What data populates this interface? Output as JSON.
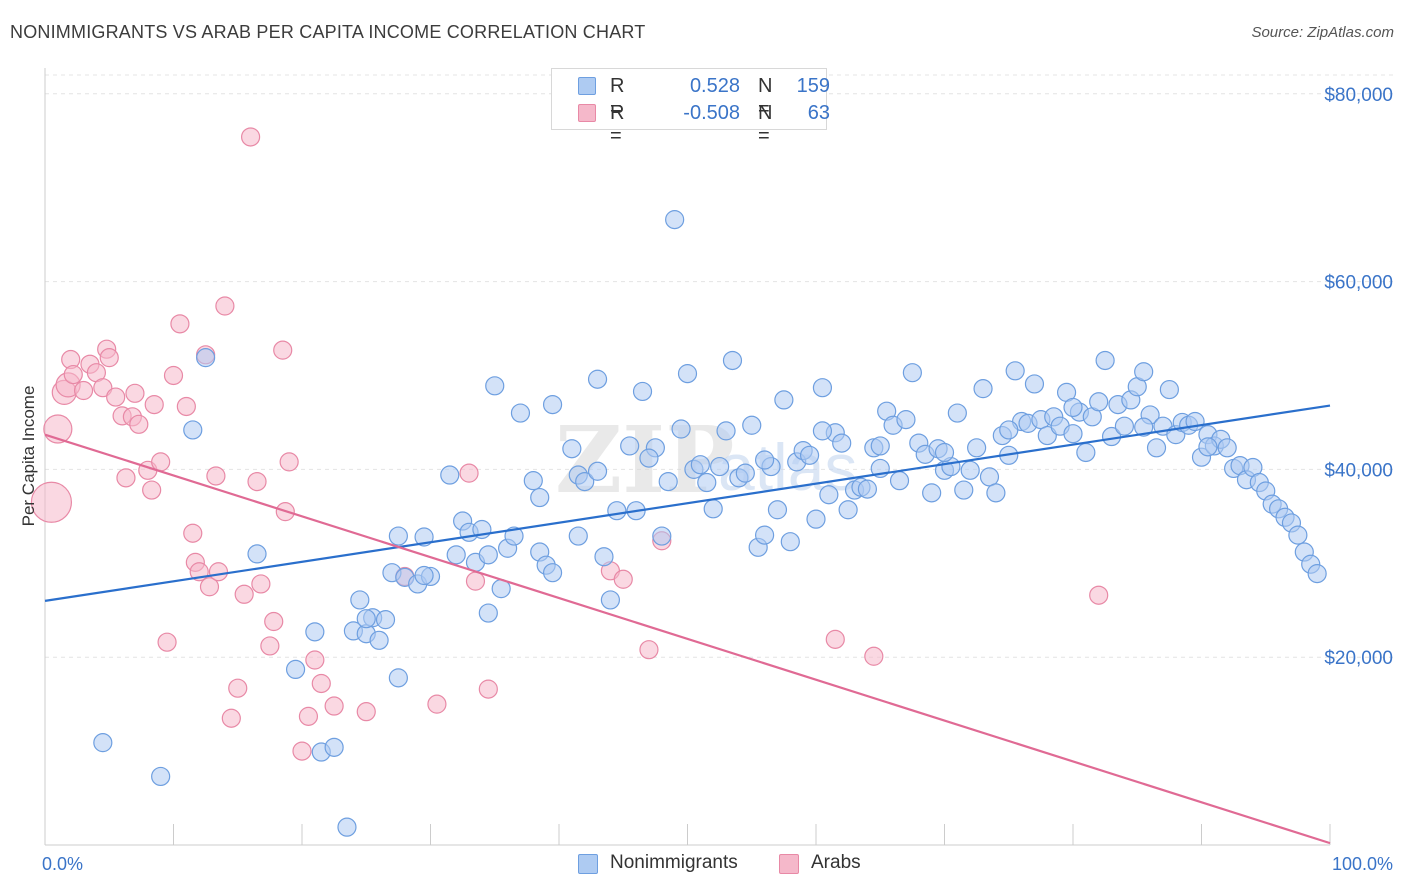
{
  "header": {
    "title": "NONIMMIGRANTS VS ARAB PER CAPITA INCOME CORRELATION CHART",
    "source": "Source: ZipAtlas.com"
  },
  "legend": {
    "rows": [
      {
        "r_label": "R =",
        "r_value": "0.528",
        "n_label": "N =",
        "n_value": "159"
      },
      {
        "r_label": "R =",
        "r_value": "-0.508",
        "n_label": "N =",
        "n_value": "63"
      }
    ]
  },
  "colors": {
    "blue_fill": "#aecbf2",
    "blue_stroke": "#6e9fe0",
    "blue_line": "#2a6fcc",
    "pink_fill": "#f5b8ca",
    "pink_stroke": "#e889a6",
    "pink_line": "#e06a94",
    "tick_text": "#3a74c8",
    "grid": "#e4e4e4"
  },
  "chart_data": {
    "type": "scatter",
    "title": "NONIMMIGRANTS VS ARAB PER CAPITA INCOME CORRELATION CHART",
    "ylabel": "Per Capita Income",
    "xlabel": "",
    "xlim": [
      0,
      100
    ],
    "ylim": [
      0,
      82000
    ],
    "x_tick_labels": [
      "0.0%",
      "100.0%"
    ],
    "y_ticks": [
      {
        "value": 20000,
        "label": "$20,000"
      },
      {
        "value": 40000,
        "label": "$40,000"
      },
      {
        "value": 60000,
        "label": "$60,000"
      },
      {
        "value": 80000,
        "label": "$80,000"
      }
    ],
    "grid": "horizontal dashed",
    "legend_position": "top-center and bottom",
    "watermark": "ZIPatlas",
    "series": [
      {
        "name": "Nonimmigrants",
        "color": "blue",
        "trend": {
          "x": [
            0,
            100
          ],
          "y": [
            26000,
            46800
          ]
        },
        "points": [
          [
            4.5,
            10900
          ],
          [
            9.0,
            7300
          ],
          [
            11.5,
            44200
          ],
          [
            12.5,
            51900
          ],
          [
            16.5,
            31000
          ],
          [
            19.5,
            18700
          ],
          [
            21.0,
            22700
          ],
          [
            21.5,
            9900
          ],
          [
            22.5,
            10400
          ],
          [
            23.5,
            1900
          ],
          [
            24.0,
            22800
          ],
          [
            24.5,
            26100
          ],
          [
            25.0,
            22500
          ],
          [
            25.5,
            24200
          ],
          [
            26.0,
            21800
          ],
          [
            26.5,
            24000
          ],
          [
            27.0,
            29000
          ],
          [
            27.5,
            17800
          ],
          [
            27.5,
            32900
          ],
          [
            28.0,
            28500
          ],
          [
            29.0,
            27800
          ],
          [
            29.5,
            32800
          ],
          [
            30.0,
            28600
          ],
          [
            31.5,
            39400
          ],
          [
            32.0,
            30900
          ],
          [
            32.5,
            34500
          ],
          [
            33.0,
            33300
          ],
          [
            33.5,
            30100
          ],
          [
            34.5,
            24700
          ],
          [
            34.5,
            30900
          ],
          [
            35.0,
            48900
          ],
          [
            35.5,
            27300
          ],
          [
            36.0,
            31600
          ],
          [
            36.5,
            32900
          ],
          [
            37.0,
            46000
          ],
          [
            38.0,
            38800
          ],
          [
            38.5,
            31200
          ],
          [
            39.0,
            29800
          ],
          [
            39.5,
            46900
          ],
          [
            39.5,
            29000
          ],
          [
            41.0,
            42200
          ],
          [
            41.5,
            32900
          ],
          [
            41.5,
            39400
          ],
          [
            42.0,
            38700
          ],
          [
            43.0,
            49600
          ],
          [
            43.5,
            30700
          ],
          [
            44.0,
            26100
          ],
          [
            44.5,
            35600
          ],
          [
            45.5,
            42500
          ],
          [
            46.0,
            35600
          ],
          [
            46.5,
            48300
          ],
          [
            47.5,
            42300
          ],
          [
            48.0,
            32900
          ],
          [
            48.5,
            38700
          ],
          [
            49.0,
            66600
          ],
          [
            49.5,
            44300
          ],
          [
            50.0,
            50200
          ],
          [
            50.5,
            40000
          ],
          [
            51.0,
            40500
          ],
          [
            52.0,
            35800
          ],
          [
            52.5,
            40300
          ],
          [
            53.0,
            44100
          ],
          [
            53.5,
            51600
          ],
          [
            54.0,
            39100
          ],
          [
            54.5,
            39600
          ],
          [
            55.0,
            44700
          ],
          [
            55.5,
            31700
          ],
          [
            56.0,
            33000
          ],
          [
            56.5,
            40300
          ],
          [
            57.0,
            35700
          ],
          [
            57.5,
            47400
          ],
          [
            58.0,
            32300
          ],
          [
            58.5,
            40800
          ],
          [
            59.0,
            42000
          ],
          [
            59.5,
            41500
          ],
          [
            60.0,
            34700
          ],
          [
            60.5,
            48700
          ],
          [
            61.0,
            37300
          ],
          [
            61.5,
            43900
          ],
          [
            62.0,
            42800
          ],
          [
            62.5,
            35700
          ],
          [
            63.0,
            37800
          ],
          [
            63.5,
            38100
          ],
          [
            64.0,
            37900
          ],
          [
            64.5,
            42300
          ],
          [
            65.0,
            42500
          ],
          [
            65.5,
            46200
          ],
          [
            66.0,
            44700
          ],
          [
            66.5,
            38800
          ],
          [
            67.0,
            45300
          ],
          [
            67.5,
            50300
          ],
          [
            68.0,
            42800
          ],
          [
            68.5,
            41600
          ],
          [
            69.0,
            37500
          ],
          [
            69.5,
            42200
          ],
          [
            70.0,
            39900
          ],
          [
            70.5,
            40300
          ],
          [
            71.0,
            46000
          ],
          [
            71.5,
            37800
          ],
          [
            72.0,
            39900
          ],
          [
            72.5,
            42300
          ],
          [
            73.0,
            48600
          ],
          [
            73.5,
            39200
          ],
          [
            74.0,
            37500
          ],
          [
            74.5,
            43600
          ],
          [
            75.0,
            41500
          ],
          [
            75.5,
            50500
          ],
          [
            76.0,
            45100
          ],
          [
            76.5,
            44900
          ],
          [
            77.0,
            49100
          ],
          [
            77.5,
            45300
          ],
          [
            78.0,
            43600
          ],
          [
            78.5,
            45600
          ],
          [
            79.0,
            44600
          ],
          [
            79.5,
            48200
          ],
          [
            80.0,
            43800
          ],
          [
            80.5,
            46100
          ],
          [
            81.0,
            41800
          ],
          [
            81.5,
            45600
          ],
          [
            82.0,
            47200
          ],
          [
            82.5,
            51600
          ],
          [
            83.0,
            43500
          ],
          [
            83.5,
            46900
          ],
          [
            84.0,
            44600
          ],
          [
            84.5,
            47400
          ],
          [
            85.0,
            48800
          ],
          [
            85.5,
            50400
          ],
          [
            86.0,
            45800
          ],
          [
            86.5,
            42300
          ],
          [
            87.0,
            44600
          ],
          [
            87.5,
            48500
          ],
          [
            88.0,
            43700
          ],
          [
            88.5,
            45000
          ],
          [
            89.0,
            44700
          ],
          [
            89.5,
            45100
          ],
          [
            90.0,
            41300
          ],
          [
            90.5,
            43700
          ],
          [
            91.0,
            42500
          ],
          [
            91.5,
            43200
          ],
          [
            92.0,
            42300
          ],
          [
            92.5,
            40100
          ],
          [
            93.0,
            40400
          ],
          [
            93.5,
            38900
          ],
          [
            94.0,
            40200
          ],
          [
            94.5,
            38600
          ],
          [
            95.0,
            37700
          ],
          [
            95.5,
            36300
          ],
          [
            96.0,
            35800
          ],
          [
            96.5,
            34900
          ],
          [
            97.0,
            34300
          ],
          [
            97.5,
            33000
          ],
          [
            98.0,
            31200
          ],
          [
            98.5,
            29900
          ],
          [
            99.0,
            28900
          ],
          [
            90.5,
            42400
          ],
          [
            85.5,
            44500
          ],
          [
            80.0,
            46600
          ],
          [
            75.0,
            44200
          ],
          [
            70.0,
            41800
          ],
          [
            65.0,
            40100
          ],
          [
            60.5,
            44100
          ],
          [
            56.0,
            41000
          ],
          [
            51.5,
            38600
          ],
          [
            47.0,
            41200
          ],
          [
            43.0,
            39800
          ],
          [
            38.5,
            37000
          ],
          [
            34.0,
            33600
          ],
          [
            29.5,
            28700
          ],
          [
            25.0,
            24100
          ]
        ]
      },
      {
        "name": "Arabs",
        "color": "pink",
        "trend": {
          "x": [
            0,
            100
          ],
          "y": [
            43700,
            200
          ]
        },
        "points": [
          [
            0.5,
            36500
          ],
          [
            1.0,
            44300
          ],
          [
            1.5,
            48200
          ],
          [
            1.8,
            49000
          ],
          [
            2.0,
            51700
          ],
          [
            2.2,
            50100
          ],
          [
            3.0,
            48400
          ],
          [
            3.5,
            51200
          ],
          [
            4.0,
            50300
          ],
          [
            4.5,
            48700
          ],
          [
            4.8,
            52800
          ],
          [
            5.0,
            51900
          ],
          [
            5.5,
            47700
          ],
          [
            6.0,
            45700
          ],
          [
            6.3,
            39100
          ],
          [
            6.8,
            45600
          ],
          [
            7.0,
            48100
          ],
          [
            7.3,
            44800
          ],
          [
            8.0,
            39900
          ],
          [
            8.3,
            37800
          ],
          [
            8.5,
            46900
          ],
          [
            9.0,
            40800
          ],
          [
            9.5,
            21600
          ],
          [
            10.0,
            50000
          ],
          [
            10.5,
            55500
          ],
          [
            11.0,
            46700
          ],
          [
            11.5,
            33200
          ],
          [
            11.7,
            30100
          ],
          [
            12.0,
            29100
          ],
          [
            12.5,
            52200
          ],
          [
            12.8,
            27500
          ],
          [
            13.3,
            39300
          ],
          [
            13.5,
            29100
          ],
          [
            14.0,
            57400
          ],
          [
            14.5,
            13500
          ],
          [
            15.0,
            16700
          ],
          [
            15.5,
            26700
          ],
          [
            16.0,
            75400
          ],
          [
            16.5,
            38700
          ],
          [
            16.8,
            27800
          ],
          [
            17.5,
            21200
          ],
          [
            17.8,
            23800
          ],
          [
            18.5,
            52700
          ],
          [
            18.7,
            35500
          ],
          [
            19.0,
            40800
          ],
          [
            20.0,
            10000
          ],
          [
            20.5,
            13700
          ],
          [
            21.0,
            19700
          ],
          [
            21.5,
            17200
          ],
          [
            22.5,
            14800
          ],
          [
            25.0,
            14200
          ],
          [
            28.0,
            28600
          ],
          [
            30.5,
            15000
          ],
          [
            33.0,
            39600
          ],
          [
            33.5,
            28100
          ],
          [
            34.5,
            16600
          ],
          [
            44.0,
            29200
          ],
          [
            45.0,
            28300
          ],
          [
            47.0,
            20800
          ],
          [
            48.0,
            32400
          ],
          [
            61.5,
            21900
          ],
          [
            64.5,
            20100
          ],
          [
            82.0,
            26600
          ]
        ]
      }
    ]
  }
}
